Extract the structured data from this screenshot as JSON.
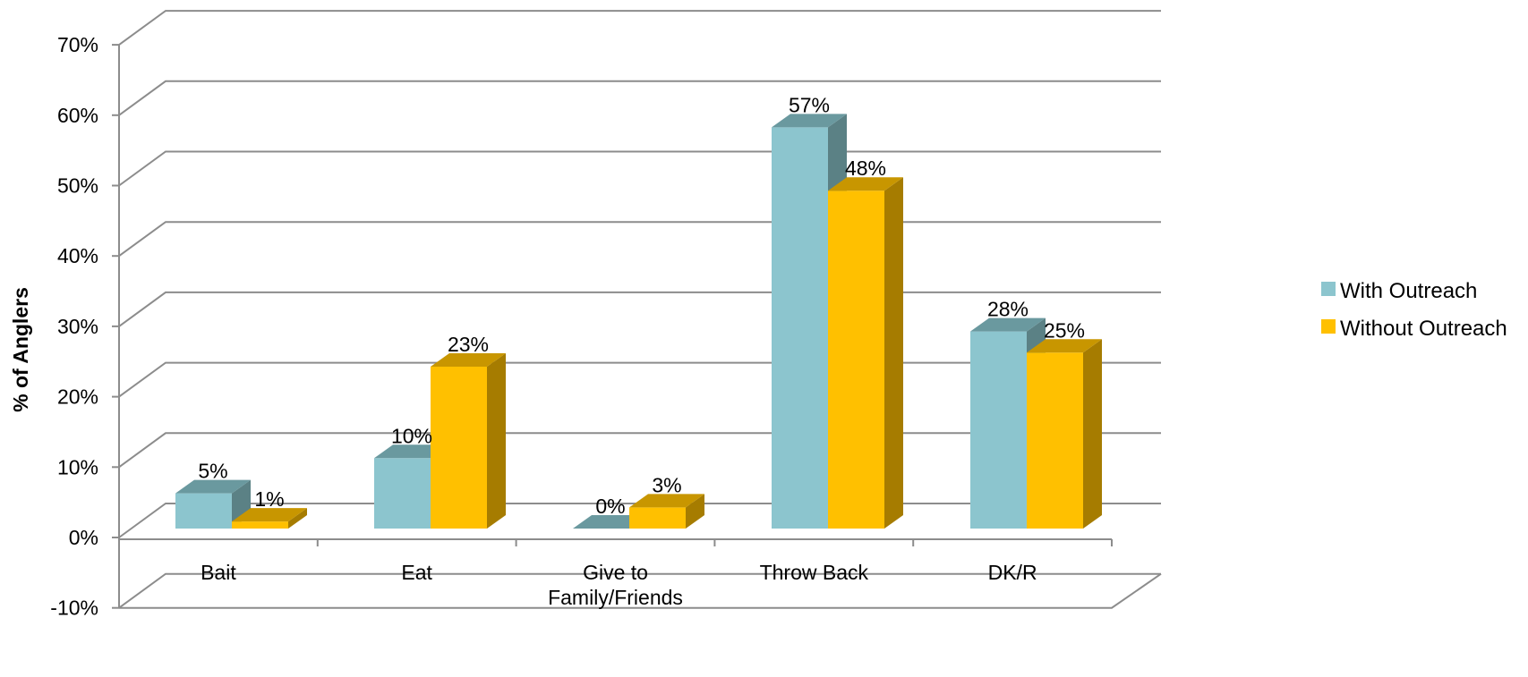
{
  "chart_data": {
    "type": "bar",
    "title": "",
    "xlabel": "",
    "ylabel": "% of Anglers",
    "ylim": [
      -10,
      70
    ],
    "yticks": [
      -10,
      0,
      10,
      20,
      30,
      40,
      50,
      60,
      70
    ],
    "ytick_labels": [
      "-10%",
      "0%",
      "10%",
      "20%",
      "30%",
      "40%",
      "50%",
      "60%",
      "70%"
    ],
    "categories": [
      [
        "Bait"
      ],
      [
        "Eat"
      ],
      [
        "Give to",
        "Family/Friends"
      ],
      [
        "Throw Back"
      ],
      [
        "DK/R"
      ]
    ],
    "series": [
      {
        "name": "With Outreach",
        "values": [
          5,
          10,
          0,
          57,
          28
        ],
        "labels": [
          "5%",
          "10%",
          "0%",
          "57%",
          "28%"
        ],
        "color": "#8cc5ce",
        "top_color": "#6a999f",
        "side_color": "#5b8185"
      },
      {
        "name": "Without Outreach",
        "values": [
          1,
          23,
          3,
          48,
          25
        ],
        "labels": [
          "1%",
          "23%",
          "3%",
          "48%",
          "25%"
        ],
        "color": "#ffc000",
        "top_color": "#c89600",
        "side_color": "#a67c00"
      }
    ],
    "grid": true,
    "legend": "right",
    "style": "3d-clustered-column"
  }
}
